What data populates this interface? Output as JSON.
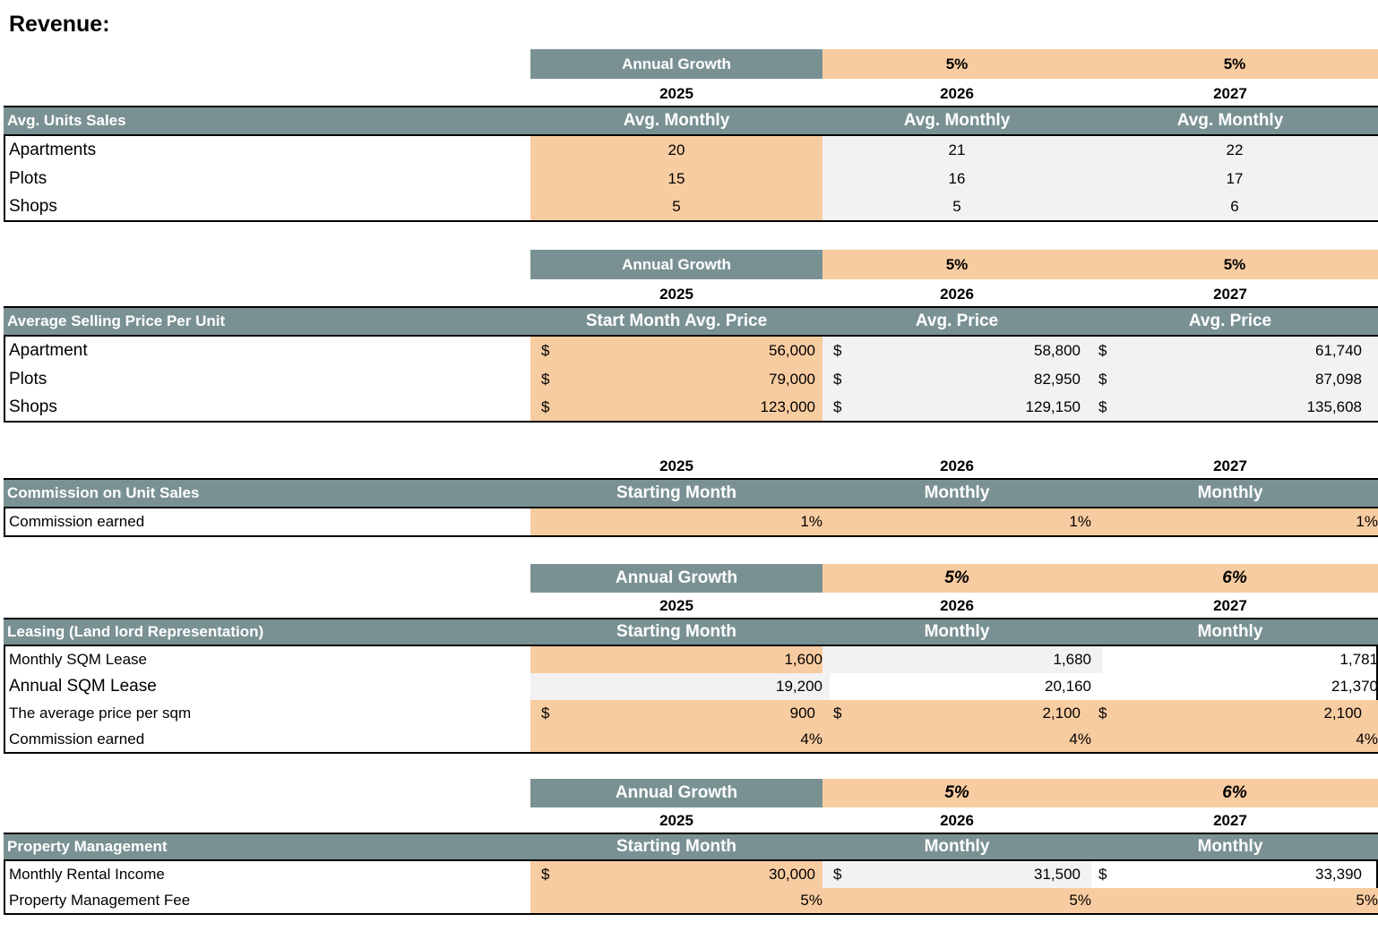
{
  "title": "Revenue:",
  "years": [
    "2025",
    "2026",
    "2027"
  ],
  "annual_growth_label": "Annual Growth",
  "currency": "$",
  "units": {
    "growth": [
      "5%",
      "5%"
    ],
    "header": "Avg. Units Sales",
    "cols": [
      "Avg. Monthly",
      "Avg. Monthly",
      "Avg. Monthly"
    ],
    "rows": [
      {
        "label": "Apartments",
        "v": [
          "20",
          "21",
          "22"
        ]
      },
      {
        "label": "Plots",
        "v": [
          "15",
          "16",
          "17"
        ]
      },
      {
        "label": "Shops",
        "v": [
          "5",
          "5",
          "6"
        ]
      }
    ]
  },
  "price": {
    "growth": [
      "5%",
      "5%"
    ],
    "header": "Average Selling Price Per Unit",
    "cols": [
      "Start Month Avg. Price",
      "Avg. Price",
      "Avg. Price"
    ],
    "rows": [
      {
        "label": "Apartment",
        "v": [
          "56,000",
          "58,800",
          "61,740"
        ]
      },
      {
        "label": "Plots",
        "v": [
          "79,000",
          "82,950",
          "87,098"
        ]
      },
      {
        "label": "Shops",
        "v": [
          "123,000",
          "129,150",
          "135,608"
        ]
      }
    ]
  },
  "commission": {
    "header": "Commission on Unit Sales",
    "cols": [
      "Starting Month",
      "Monthly",
      "Monthly"
    ],
    "rows": [
      {
        "label": "Commission earned",
        "v": [
          "1%",
          "1%",
          "1%"
        ]
      }
    ]
  },
  "leasing": {
    "growth": [
      "5%",
      "6%"
    ],
    "header": "Leasing (Land lord Representation)",
    "cols": [
      "Starting Month",
      "Monthly",
      "Monthly"
    ],
    "rows": [
      {
        "label": "Monthly SQM Lease",
        "v": [
          "1,600",
          "1,680",
          "1,781"
        ]
      },
      {
        "label": "Annual SQM Lease",
        "v": [
          "19,200",
          "20,160",
          "21,370"
        ]
      },
      {
        "label": "The average price per sqm",
        "v": [
          "900",
          "2,100",
          "2,100"
        ]
      },
      {
        "label": "Commission earned",
        "v": [
          "4%",
          "4%",
          "4%"
        ]
      }
    ]
  },
  "property": {
    "growth": [
      "5%",
      "6%"
    ],
    "header": "Property Management",
    "cols": [
      "Starting Month",
      "Monthly",
      "Monthly"
    ],
    "rows": [
      {
        "label": "Monthly Rental Income",
        "v": [
          "30,000",
          "31,500",
          "33,390"
        ]
      },
      {
        "label": "Property Management Fee",
        "v": [
          "5%",
          "5%",
          "5%"
        ]
      }
    ]
  }
}
